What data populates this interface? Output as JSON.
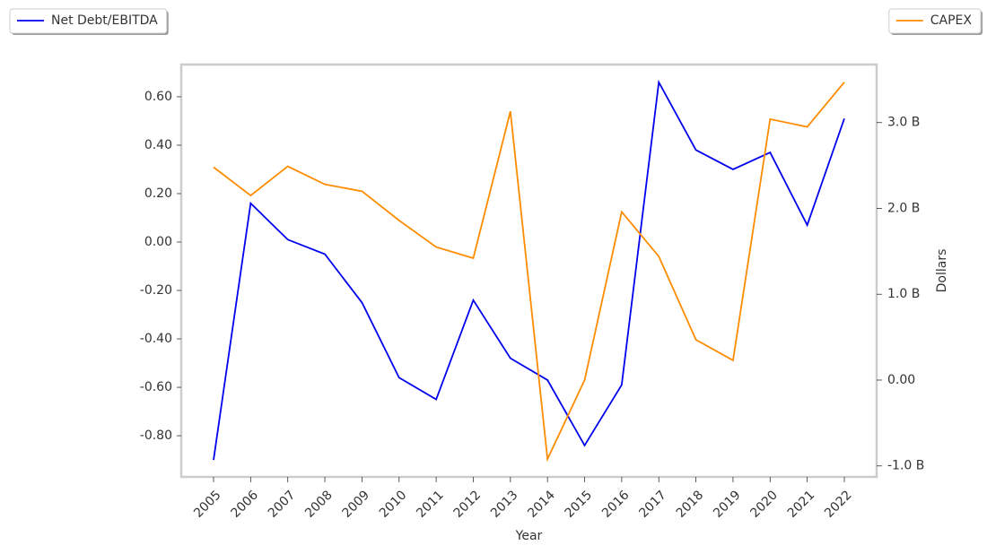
{
  "chart_data": {
    "type": "line",
    "xlabel": "Year",
    "y2label": "Dollars",
    "categories": [
      "2005",
      "2006",
      "2007",
      "2008",
      "2009",
      "2010",
      "2011",
      "2012",
      "2013",
      "2014",
      "2015",
      "2016",
      "2017",
      "2018",
      "2019",
      "2020",
      "2021",
      "2022"
    ],
    "ylim": [
      -0.97,
      0.733
    ],
    "yticks": [
      {
        "value": -0.8,
        "label": "-0.80"
      },
      {
        "value": -0.6,
        "label": "-0.60"
      },
      {
        "value": -0.4,
        "label": "-0.40"
      },
      {
        "value": -0.2,
        "label": "-0.20"
      },
      {
        "value": 0,
        "label": "0.00"
      },
      {
        "value": 0.2,
        "label": "0.20"
      },
      {
        "value": 0.4,
        "label": "0.40"
      },
      {
        "value": 0.6,
        "label": "0.60"
      }
    ],
    "y2lim": [
      -1128000000,
      3676000000
    ],
    "y2ticks": [
      {
        "value": -1000000000,
        "label": "-1.0 B"
      },
      {
        "value": 0,
        "label": "0.00"
      },
      {
        "value": 1000000000,
        "label": "1.0 B"
      },
      {
        "value": 2000000000,
        "label": "2.0 B"
      },
      {
        "value": 3000000000,
        "label": "3.0 B"
      }
    ],
    "grid": false,
    "series": [
      {
        "name": "Net Debt/EBITDA",
        "color": "#0000ee",
        "legend": "upper left",
        "values": [
          -0.9,
          0.16,
          0.01,
          -0.05,
          -0.25,
          -0.56,
          -0.65,
          -0.24,
          -0.48,
          -0.57,
          -0.84,
          -0.59,
          0.66,
          0.38,
          0.3,
          0.37,
          0.07,
          0.51
        ]
      },
      {
        "name": "CAPEX",
        "color": "#ff8c00",
        "axis": "y2",
        "legend": "upper right",
        "values": [
          2480000000,
          2150000000,
          2490000000,
          2280000000,
          2200000000,
          1860000000,
          1550000000,
          1420000000,
          3130000000,
          -920000000,
          0,
          1960000000,
          1440000000,
          470000000,
          230000000,
          3040000000,
          2950000000,
          3470000000
        ]
      }
    ]
  }
}
